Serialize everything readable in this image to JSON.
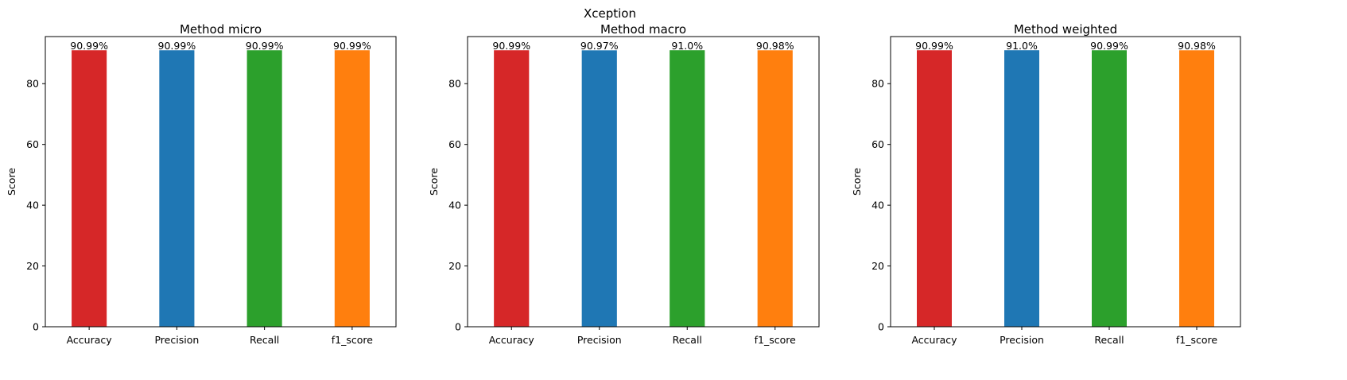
{
  "suptitle": "Xception",
  "chart_data": [
    {
      "type": "bar",
      "title": "Method micro",
      "xlabel": "",
      "ylabel": "Score",
      "categories": [
        "Accuracy",
        "Precision",
        "Recall",
        "f1_score"
      ],
      "values": [
        90.99,
        90.99,
        90.99,
        90.99
      ],
      "data_labels": [
        "90.99%",
        "90.99%",
        "90.99%",
        "90.99%"
      ],
      "colors": [
        "#d62728",
        "#1f77b4",
        "#2ca02c",
        "#ff7f0e"
      ],
      "ylim": [
        0,
        95.5
      ],
      "yticks": [
        0,
        20,
        40,
        60,
        80
      ],
      "grid": false
    },
    {
      "type": "bar",
      "title": "Method macro",
      "xlabel": "",
      "ylabel": "Score",
      "categories": [
        "Accuracy",
        "Precision",
        "Recall",
        "f1_score"
      ],
      "values": [
        90.99,
        90.97,
        91.0,
        90.98
      ],
      "data_labels": [
        "90.99%",
        "90.97%",
        "91.0%",
        "90.98%"
      ],
      "colors": [
        "#d62728",
        "#1f77b4",
        "#2ca02c",
        "#ff7f0e"
      ],
      "ylim": [
        0,
        95.5
      ],
      "yticks": [
        0,
        20,
        40,
        60,
        80
      ],
      "grid": false
    },
    {
      "type": "bar",
      "title": "Method weighted",
      "xlabel": "",
      "ylabel": "Score",
      "categories": [
        "Accuracy",
        "Precision",
        "Recall",
        "f1_score"
      ],
      "values": [
        90.99,
        91.0,
        90.99,
        90.98
      ],
      "data_labels": [
        "90.99%",
        "91.0%",
        "90.99%",
        "90.98%"
      ],
      "colors": [
        "#d62728",
        "#1f77b4",
        "#2ca02c",
        "#ff7f0e"
      ],
      "ylim": [
        0,
        95.5
      ],
      "yticks": [
        0,
        20,
        40,
        60,
        80
      ],
      "grid": false
    }
  ]
}
